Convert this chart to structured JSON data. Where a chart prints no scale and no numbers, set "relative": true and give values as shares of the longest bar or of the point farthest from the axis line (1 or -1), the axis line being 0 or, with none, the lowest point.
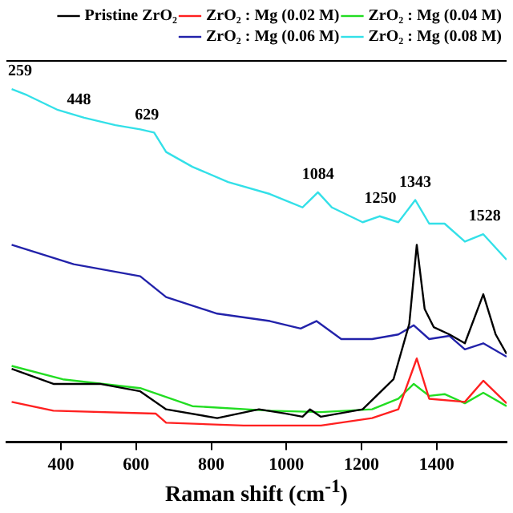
{
  "chart_data": {
    "type": "line",
    "relative": true,
    "xlabel": "Raman shift (cm$^{-1}$)",
    "xlim": [
      255,
      1586
    ],
    "xticks": [
      400,
      600,
      800,
      1000,
      1200,
      1400
    ],
    "grid": false,
    "legend": "top right",
    "marker": "none",
    "annotations": [
      {
        "text": "259",
        "x": 259,
        "y": 1.0
      },
      {
        "text": "448",
        "x": 448,
        "y": 0.919
      },
      {
        "text": "629",
        "x": 629,
        "y": 0.877
      },
      {
        "text": "1084",
        "x": 1084,
        "y": 0.708
      },
      {
        "text": "1250",
        "x": 1250,
        "y": 0.64
      },
      {
        "text": "1343",
        "x": 1343,
        "y": 0.686
      },
      {
        "text": "1528",
        "x": 1528,
        "y": 0.589
      }
    ],
    "series": [
      {
        "name": "Pristine ZrO₂",
        "color": "#000000",
        "x": [
          269,
          380,
          504,
          611,
          680,
          816,
          927,
          997,
          1043,
          1063,
          1092,
          1203,
          1285,
          1327,
          1347,
          1368,
          1392,
          1434,
          1475,
          1524,
          1557,
          1586
        ],
        "values": [
          0.208,
          0.165,
          0.165,
          0.144,
          0.093,
          0.068,
          0.093,
          0.081,
          0.072,
          0.093,
          0.072,
          0.093,
          0.178,
          0.335,
          0.559,
          0.377,
          0.326,
          0.305,
          0.28,
          0.419,
          0.305,
          0.25
        ]
      },
      {
        "name": "ZrO₂ : Mg (0.02 M)",
        "color": "#ff2020",
        "x": [
          269,
          380,
          652,
          680,
          886,
          1092,
          1228,
          1298,
          1347,
          1380,
          1475,
          1524,
          1586
        ],
        "values": [
          0.114,
          0.089,
          0.081,
          0.055,
          0.047,
          0.047,
          0.068,
          0.093,
          0.237,
          0.123,
          0.114,
          0.174,
          0.11
        ]
      },
      {
        "name": "ZrO₂ : Mg (0.04 M)",
        "color": "#22dd22",
        "x": [
          269,
          405,
          611,
          750,
          956,
          1092,
          1228,
          1298,
          1339,
          1380,
          1421,
          1475,
          1524,
          1586
        ],
        "values": [
          0.216,
          0.178,
          0.153,
          0.102,
          0.089,
          0.085,
          0.093,
          0.123,
          0.165,
          0.131,
          0.136,
          0.11,
          0.14,
          0.102
        ]
      },
      {
        "name": "ZrO₂ : Mg (0.06 M)",
        "color": "#2222aa",
        "x": [
          269,
          434,
          611,
          680,
          816,
          956,
          1038,
          1080,
          1146,
          1228,
          1298,
          1339,
          1380,
          1434,
          1475,
          1524,
          1586
        ],
        "values": [
          0.559,
          0.504,
          0.47,
          0.411,
          0.364,
          0.343,
          0.322,
          0.343,
          0.292,
          0.292,
          0.305,
          0.331,
          0.292,
          0.301,
          0.263,
          0.28,
          0.242
        ]
      },
      {
        "name": "ZrO₂ : Mg (0.08 M)",
        "color": "#33e0e8",
        "x": [
          269,
          310,
          392,
          462,
          545,
          611,
          648,
          680,
          750,
          845,
          956,
          1043,
          1084,
          1121,
          1203,
          1248,
          1298,
          1343,
          1380,
          1421,
          1475,
          1524,
          1586
        ],
        "values": [
          1.0,
          0.983,
          0.941,
          0.919,
          0.898,
          0.886,
          0.877,
          0.822,
          0.78,
          0.737,
          0.703,
          0.665,
          0.708,
          0.665,
          0.623,
          0.64,
          0.623,
          0.686,
          0.619,
          0.619,
          0.568,
          0.589,
          0.517
        ]
      }
    ]
  }
}
